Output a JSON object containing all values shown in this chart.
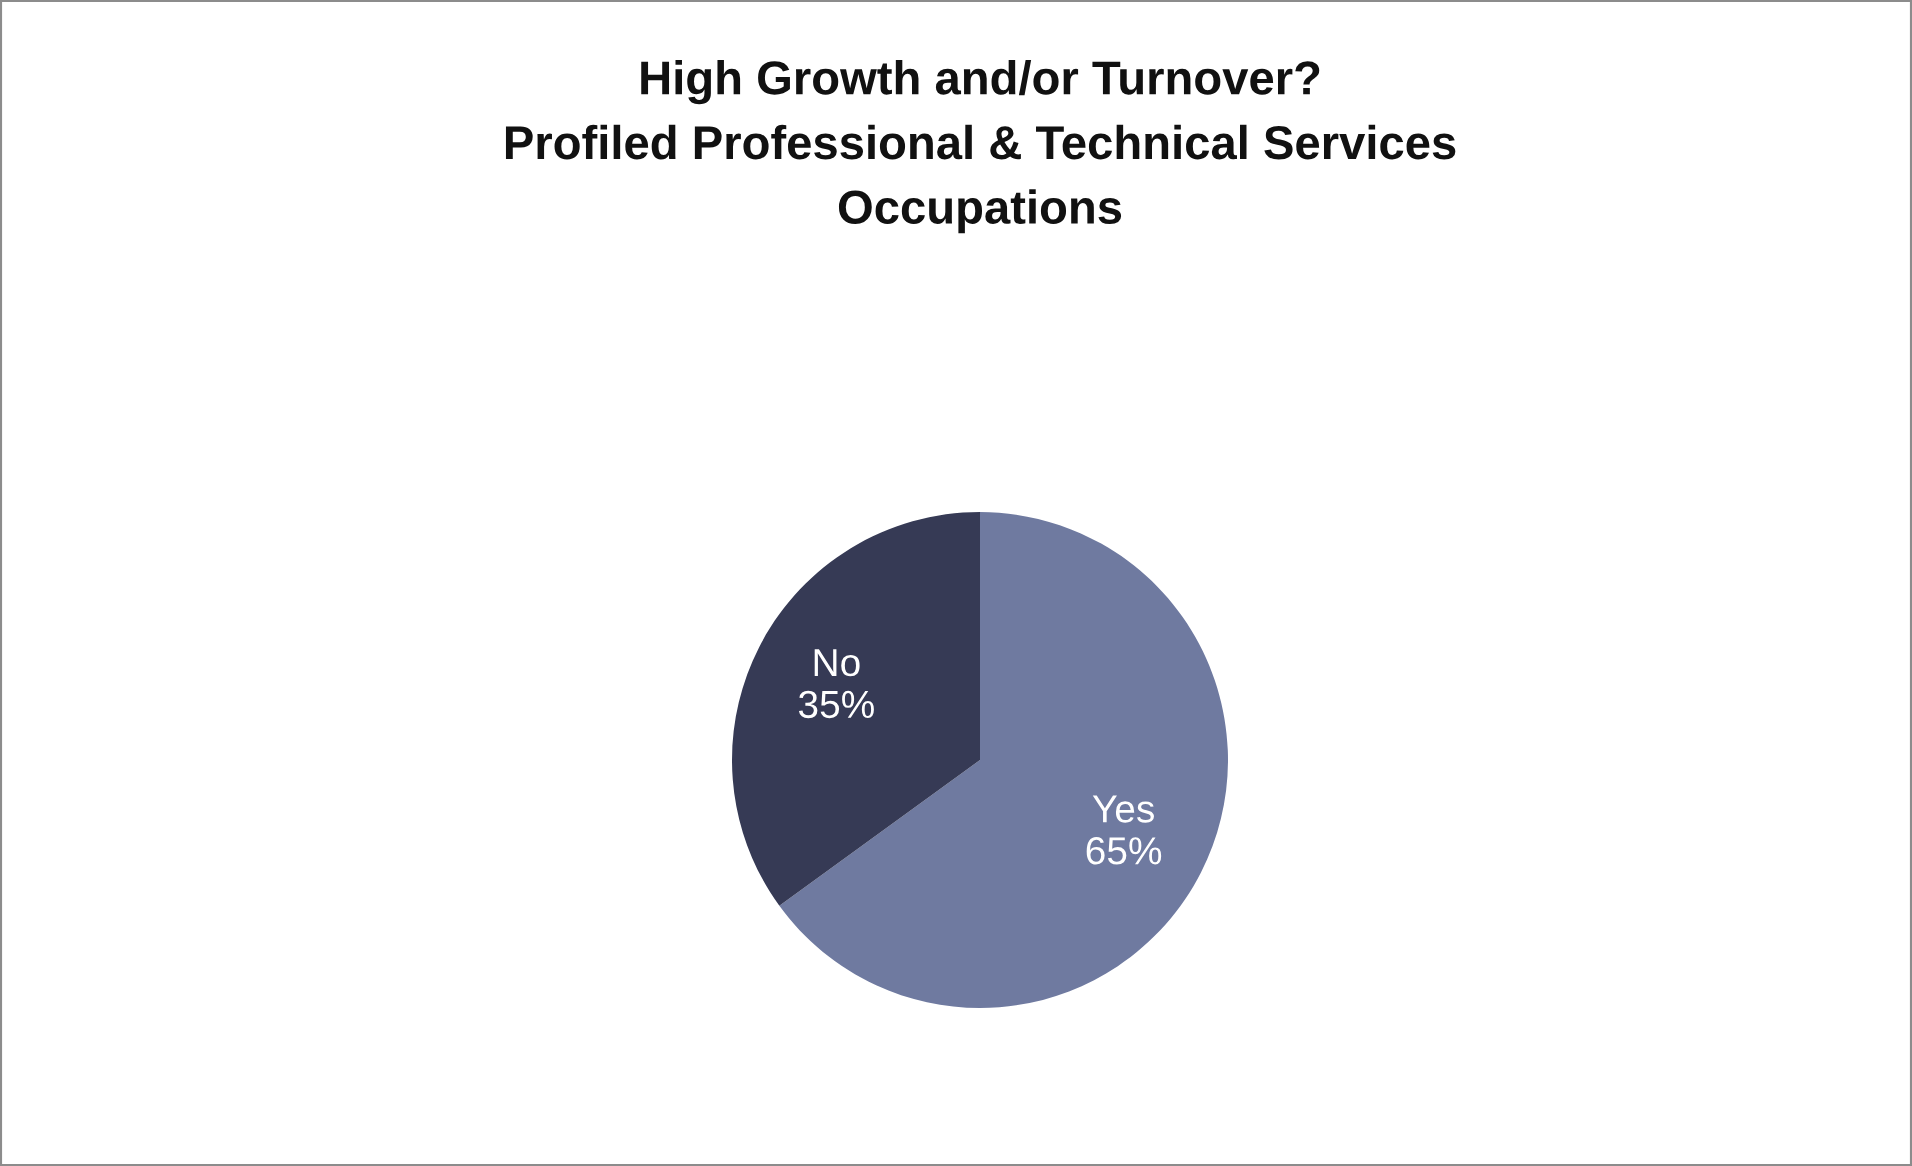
{
  "chart_data": {
    "type": "pie",
    "title": "High Growth and/or Turnover?\nProfiled Professional & Technical Services\nOccupations",
    "categories": [
      "Yes",
      "No"
    ],
    "values": [
      65,
      35
    ],
    "colors": [
      "#6f7aa0",
      "#363a55"
    ],
    "value_labels": [
      "65%",
      "35%"
    ],
    "legend": false
  }
}
